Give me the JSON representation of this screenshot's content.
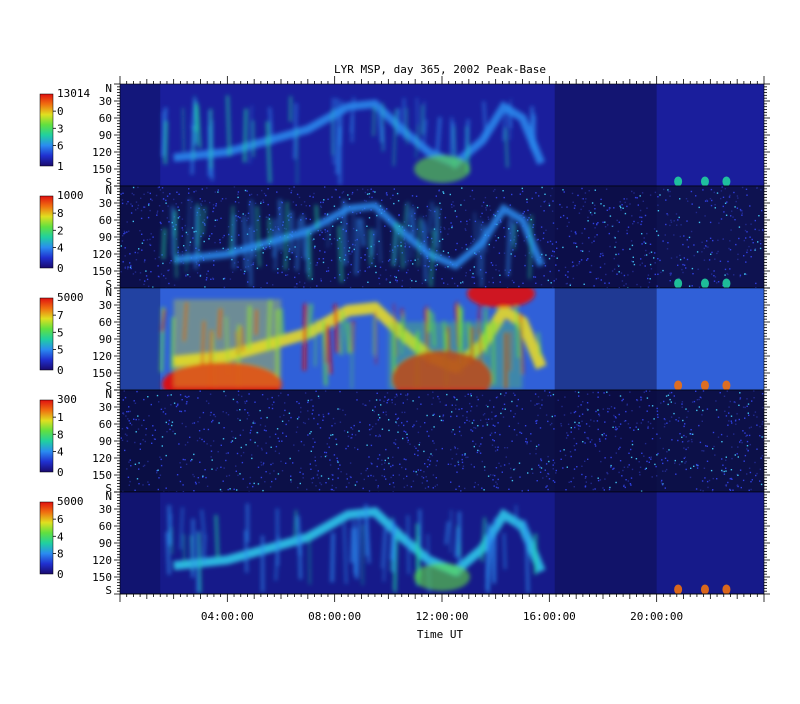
{
  "chart_data": {
    "type": "heatmap",
    "title": "LYR MSP, day 365, 2002 Peak-Base",
    "xlabel": "Time UT",
    "x_ticks": [
      "04:00:00",
      "08:00:00",
      "12:00:00",
      "16:00:00",
      "20:00:00"
    ],
    "x_tick_hours": [
      4,
      8,
      12,
      16,
      20
    ],
    "x_range_hours": [
      0,
      24
    ],
    "y_range": [
      0,
      180
    ],
    "y_ticks": [
      "N",
      "30",
      "60",
      "90",
      "120",
      "150",
      "S"
    ],
    "y_tick_values": [
      0,
      30,
      60,
      90,
      120,
      150,
      180
    ],
    "colormap": [
      "#1a0a6e",
      "#2030d0",
      "#2a8cf0",
      "#20d0a0",
      "#60e040",
      "#e0e020",
      "#f07010",
      "#e01010"
    ],
    "panels": [
      {
        "colorbar_max": "13014",
        "colorbar_labels": [
          "0",
          "3",
          "6"
        ],
        "colorbar_min": "1",
        "background": "#1a1e9c",
        "intensity": 0.35
      },
      {
        "colorbar_max": "1000",
        "colorbar_labels": [
          "8",
          "2",
          "4"
        ],
        "colorbar_min": "0",
        "background": "#0e1250",
        "intensity": 0.25
      },
      {
        "colorbar_max": "5000",
        "colorbar_labels": [
          "7",
          "5",
          "5"
        ],
        "colorbar_min": "0",
        "background": "#3060d8",
        "intensity": 0.9
      },
      {
        "colorbar_max": "300",
        "colorbar_labels": [
          "1",
          "8",
          "4"
        ],
        "colorbar_min": "0",
        "background": "#0c1048",
        "intensity": 0.1
      },
      {
        "colorbar_max": "5000",
        "colorbar_labels": [
          "6",
          "4",
          "8"
        ],
        "colorbar_min": "0",
        "background": "#161a8a",
        "intensity": 0.5
      }
    ]
  }
}
